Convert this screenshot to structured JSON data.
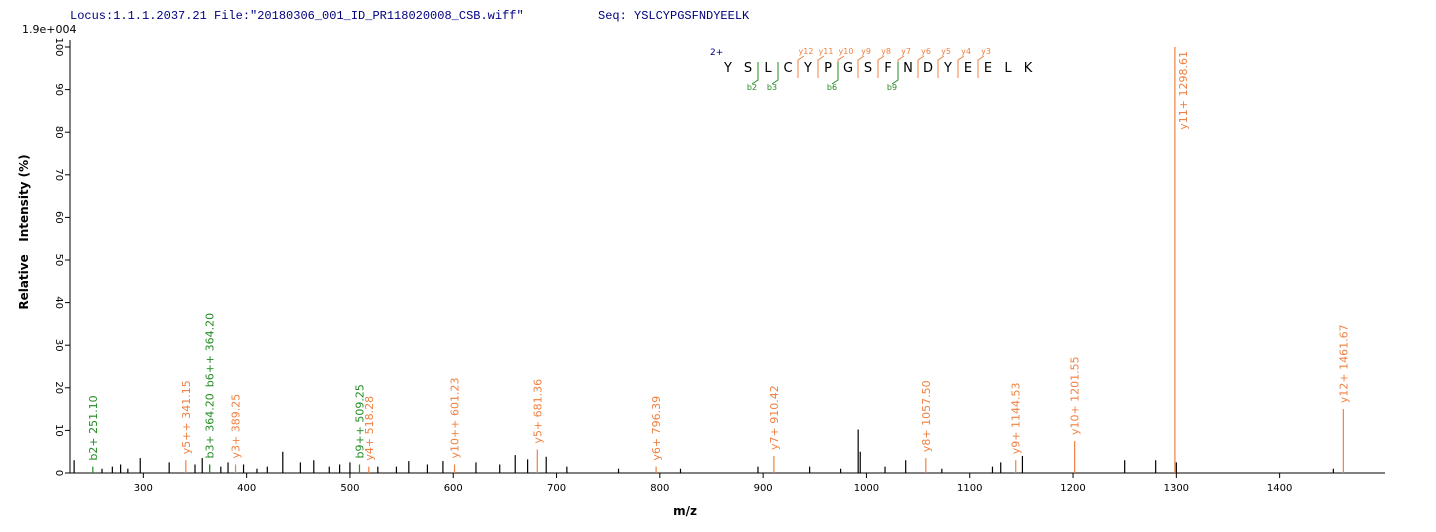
{
  "chart_data": {
    "type": "spectrum",
    "title": "Locus:1.1.1.2037.21 File:\"20180306_001_ID_PR118020008_CSB.wiff\"",
    "subtitle": "Seq: YSLCYPGSFNDYEELK",
    "scale_label": "1.9e+004",
    "xlabel": "m/z",
    "ylabel": "Relative   Intensity (%)",
    "xlim": [
      229,
      1502
    ],
    "ylim": [
      0,
      100
    ],
    "xticks": [
      300,
      400,
      500,
      600,
      700,
      800,
      900,
      1000,
      1100,
      1200,
      1300,
      1400
    ],
    "yticks": [
      0,
      10,
      20,
      30,
      40,
      50,
      60,
      70,
      80,
      90,
      100
    ],
    "series": [
      {
        "color": "#000000",
        "x": [
          233,
          260,
          270,
          278,
          285,
          297,
          325,
          350,
          357,
          375,
          382,
          397,
          410,
          420,
          435,
          452,
          465,
          480,
          490,
          500,
          527,
          545,
          557,
          575,
          590,
          622,
          645,
          660,
          672,
          690,
          710,
          760,
          820,
          895,
          945,
          975,
          992,
          994,
          1018,
          1038,
          1073,
          1122,
          1130,
          1151,
          1250,
          1280,
          1300,
          1452
        ],
        "values": [
          3,
          1,
          1.5,
          2,
          1,
          3.5,
          2.5,
          2,
          3.5,
          1.5,
          2.5,
          2,
          1,
          1.5,
          5,
          2.5,
          3,
          1.5,
          2,
          2.5,
          1.5,
          1.5,
          2.8,
          2,
          2.8,
          2.5,
          2,
          4.2,
          3.2,
          3.8,
          1.5,
          1,
          1,
          1.5,
          1.5,
          1,
          10.2,
          5,
          1.5,
          3,
          1,
          1.5,
          2.5,
          4,
          3,
          3,
          2.5,
          1
        ]
      },
      {
        "color": "#f08040",
        "x": [
          341.15,
          389.25,
          518.28,
          601.23,
          681.36,
          796.39,
          910.42,
          1057.5,
          1144.53,
          1201.55,
          1298.61,
          1461.67
        ],
        "values": [
          3,
          2,
          1.5,
          2,
          5.5,
          1.5,
          4,
          3.5,
          3,
          7.5,
          100,
          15
        ],
        "labels": [
          "y5++ 341.15",
          "y3+ 389.25",
          "y4+ 518.28",
          "y10++ 601.23",
          "y5+ 681.36",
          "y6+ 796.39",
          "y7+ 910.42",
          "y8+ 1057.50",
          "y9+ 1144.53",
          "y10+ 1201.55",
          "y11+ 1298.61",
          "y12+ 1461.67"
        ]
      },
      {
        "color": "#228b22",
        "x": [
          251.1,
          364.2,
          364.2,
          509.25
        ],
        "values": [
          1.5,
          2,
          2,
          2
        ],
        "labels": [
          "b2+ 251.10",
          "b3+ 364.20",
          "b6++ 364.20",
          "b9++ 509.25"
        ]
      }
    ],
    "sequence_annotation": {
      "charge": "2+",
      "residues": [
        "Y",
        "S",
        "L",
        "C",
        "Y",
        "P",
        "G",
        "S",
        "F",
        "N",
        "D",
        "Y",
        "E",
        "E",
        "L",
        "K"
      ],
      "y_ions": [
        "y12",
        "y11",
        "y10",
        "y9",
        "y8",
        "y7",
        "y6",
        "y5",
        "y4",
        "y3"
      ],
      "b_ions": [
        "b2",
        "b3",
        "b6",
        "b9"
      ]
    }
  }
}
